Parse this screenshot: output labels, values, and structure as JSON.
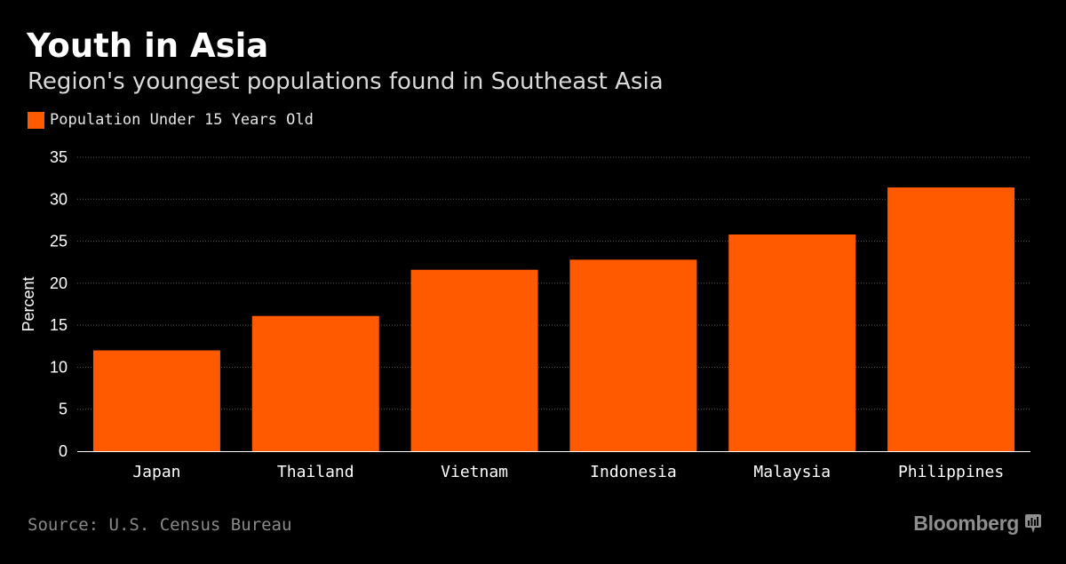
{
  "header": {
    "title": "Youth in Asia",
    "subtitle": "Region's youngest populations found in Southeast Asia"
  },
  "legend": {
    "label": "Population Under 15 Years Old",
    "color": "#ff5a00"
  },
  "footer": {
    "source": "Source: U.S. Census Bureau",
    "brand": "Bloomberg",
    "brand_icon": "bloomberg-terminal-icon"
  },
  "chart_data": {
    "type": "bar",
    "title": "Youth in Asia",
    "subtitle": "Region's youngest populations found in Southeast Asia",
    "categories": [
      "Japan",
      "Thailand",
      "Vietnam",
      "Indonesia",
      "Malaysia",
      "Philippines"
    ],
    "series": [
      {
        "name": "Population Under 15 Years Old",
        "values": [
          12.0,
          16.1,
          21.6,
          22.8,
          25.8,
          31.4
        ],
        "color": "#ff5a00"
      }
    ],
    "xlabel": "",
    "ylabel": "Percent",
    "ylim": [
      0,
      35
    ],
    "yticks": [
      0,
      5,
      10,
      15,
      20,
      25,
      30,
      35
    ],
    "grid": true,
    "legend": "top-left"
  }
}
